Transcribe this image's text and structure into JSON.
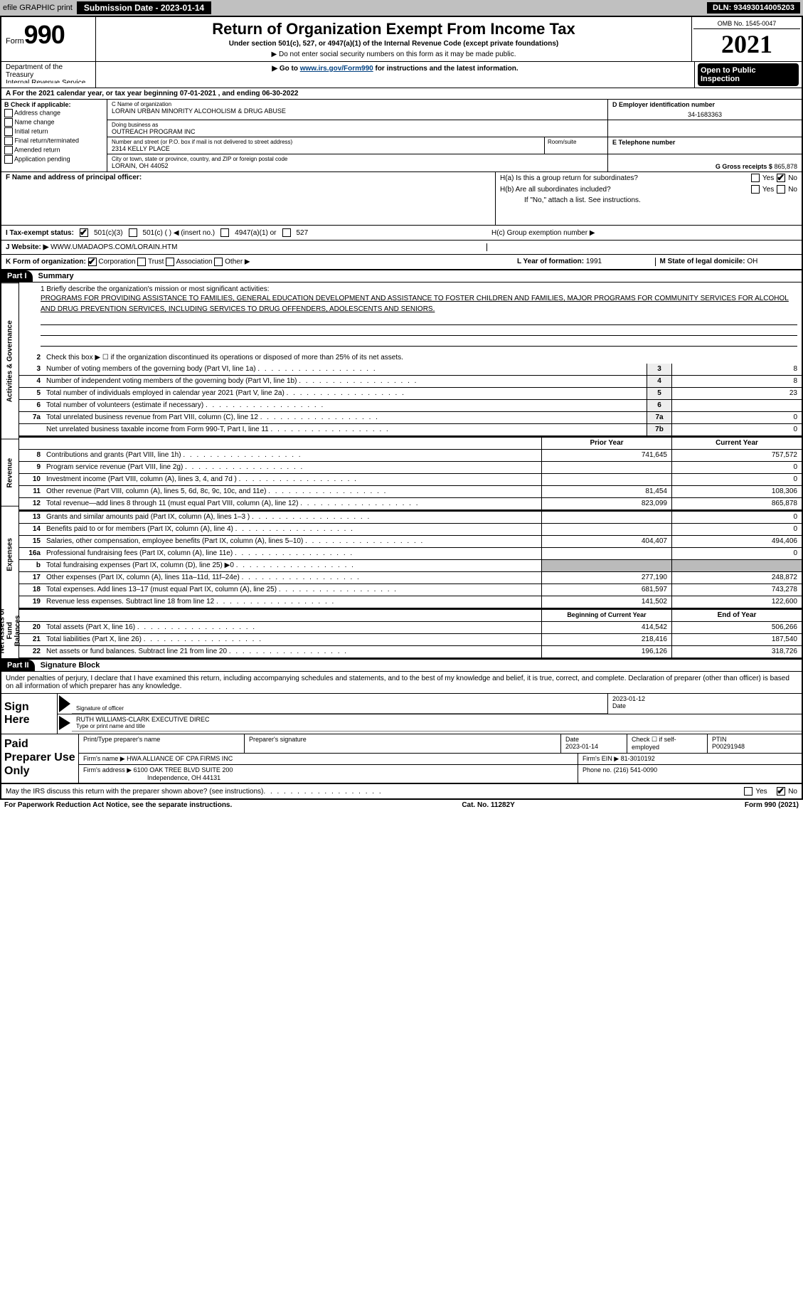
{
  "topbar": {
    "efile": "efile GRAPHIC print",
    "submission": "Submission Date - 2023-01-14",
    "dln": "DLN: 93493014005203"
  },
  "header": {
    "form_prefix": "Form",
    "form_number": "990",
    "title": "Return of Organization Exempt From Income Tax",
    "subtitle": "Under section 501(c), 527, or 4947(a)(1) of the Internal Revenue Code (except private foundations)",
    "note1": "▶ Do not enter social security numbers on this form as it may be made public.",
    "note2": "▶ Go to www.irs.gov/Form990 for instructions and the latest information.",
    "link": "www.irs.gov/Form990",
    "omb": "OMB No. 1545-0047",
    "year": "2021",
    "open": "Open to Public Inspection",
    "dept": "Department of the Treasury",
    "irs": "Internal Revenue Service"
  },
  "line_a": "A   For the 2021 calendar year, or tax year beginning 07-01-2021    , and ending 06-30-2022",
  "block_b": {
    "label": "B Check if applicable:",
    "items": [
      "Address change",
      "Name change",
      "Initial return",
      "Final return/terminated",
      "Amended return",
      "Application pending"
    ]
  },
  "block_c": {
    "name_lbl": "C Name of organization",
    "name": "LORAIN URBAN MINORITY ALCOHOLISM & DRUG ABUSE",
    "dba_lbl": "Doing business as",
    "dba": "OUTREACH PROGRAM INC",
    "street_lbl": "Number and street (or P.O. box if mail is not delivered to street address)",
    "street": "2314 KELLY PLACE",
    "room_lbl": "Room/suite",
    "city_lbl": "City or town, state or province, country, and ZIP or foreign postal code",
    "city": "LORAIN, OH  44052"
  },
  "block_d": {
    "ein_lbl": "D Employer identification number",
    "ein": "34-1683363",
    "tel_lbl": "E Telephone number",
    "gross_lbl": "G Gross receipts $",
    "gross": "865,878"
  },
  "block_f": {
    "lbl": "F Name and address of principal officer:"
  },
  "block_h": {
    "ha": "H(a)  Is this a group return for subordinates?",
    "hb": "H(b)  Are all subordinates included?",
    "hb_note": "If \"No,\" attach a list. See instructions.",
    "hc": "H(c)  Group exemption number ▶"
  },
  "row_i": {
    "lbl": "I   Tax-exempt status:",
    "opts": [
      "501(c)(3)",
      "501(c) (  ) ◀ (insert no.)",
      "4947(a)(1) or",
      "527"
    ]
  },
  "row_j": {
    "lbl": "J   Website: ▶",
    "val": "WWW.UMADAOPS.COM/LORAIN.HTM"
  },
  "row_k": {
    "lbl": "K Form of organization:",
    "opts": [
      "Corporation",
      "Trust",
      "Association",
      "Other ▶"
    ],
    "l_lbl": "L Year of formation:",
    "l_val": "1991",
    "m_lbl": "M State of legal domicile:",
    "m_val": "OH"
  },
  "parts": {
    "p1": "Part I",
    "p1_title": "Summary",
    "p2": "Part II",
    "p2_title": "Signature Block"
  },
  "summary": {
    "briefly_lbl": "1   Briefly describe the organization's mission or most significant activities:",
    "briefly": "PROGRAMS FOR PROVIDING ASSISTANCE TO FAMILIES, GENERAL EDUCATION DEVELOPMENT AND ASSISTANCE TO FOSTER CHILDREN AND FAMILIES, MAJOR PROGRAMS FOR COMMUNITY SERVICES FOR ALCOHOL AND DRUG PREVENTION SERVICES, INCLUDING SERVICES TO DRUG OFFENDERS, ADOLESCENTS AND SENIORS.",
    "tabs": {
      "gov": "Activities & Governance",
      "rev": "Revenue",
      "exp": "Expenses",
      "net": "Net Assets or Fund Balances"
    },
    "line2": "Check this box ▶ ☐  if the organization discontinued its operations or disposed of more than 25% of its net assets.",
    "lines_single": [
      {
        "n": "3",
        "t": "Number of voting members of the governing body (Part VI, line 1a)",
        "box": "3",
        "v": "8"
      },
      {
        "n": "4",
        "t": "Number of independent voting members of the governing body (Part VI, line 1b)",
        "box": "4",
        "v": "8"
      },
      {
        "n": "5",
        "t": "Total number of individuals employed in calendar year 2021 (Part V, line 2a)",
        "box": "5",
        "v": "23"
      },
      {
        "n": "6",
        "t": "Total number of volunteers (estimate if necessary)",
        "box": "6",
        "v": ""
      },
      {
        "n": "7a",
        "t": "Total unrelated business revenue from Part VIII, column (C), line 12",
        "box": "7a",
        "v": "0"
      },
      {
        "n": "",
        "t": "Net unrelated business taxable income from Form 990-T, Part I, line 11",
        "box": "7b",
        "v": "0"
      }
    ],
    "hdr_prior": "Prior Year",
    "hdr_current": "Current Year",
    "lines_rev": [
      {
        "n": "8",
        "t": "Contributions and grants (Part VIII, line 1h)",
        "p": "741,645",
        "c": "757,572"
      },
      {
        "n": "9",
        "t": "Program service revenue (Part VIII, line 2g)",
        "p": "",
        "c": "0"
      },
      {
        "n": "10",
        "t": "Investment income (Part VIII, column (A), lines 3, 4, and 7d )",
        "p": "",
        "c": "0"
      },
      {
        "n": "11",
        "t": "Other revenue (Part VIII, column (A), lines 5, 6d, 8c, 9c, 10c, and 11e)",
        "p": "81,454",
        "c": "108,306"
      },
      {
        "n": "12",
        "t": "Total revenue—add lines 8 through 11 (must equal Part VIII, column (A), line 12)",
        "p": "823,099",
        "c": "865,878"
      }
    ],
    "lines_exp": [
      {
        "n": "13",
        "t": "Grants and similar amounts paid (Part IX, column (A), lines 1–3 )",
        "p": "",
        "c": "0"
      },
      {
        "n": "14",
        "t": "Benefits paid to or for members (Part IX, column (A), line 4)",
        "p": "",
        "c": "0"
      },
      {
        "n": "15",
        "t": "Salaries, other compensation, employee benefits (Part IX, column (A), lines 5–10)",
        "p": "404,407",
        "c": "494,406"
      },
      {
        "n": "16a",
        "t": "Professional fundraising fees (Part IX, column (A), line 11e)",
        "p": "",
        "c": "0"
      },
      {
        "n": "b",
        "t": "Total fundraising expenses (Part IX, column (D), line 25) ▶0",
        "p": "SHADE",
        "c": "SHADE"
      },
      {
        "n": "17",
        "t": "Other expenses (Part IX, column (A), lines 11a–11d, 11f–24e)",
        "p": "277,190",
        "c": "248,872"
      },
      {
        "n": "18",
        "t": "Total expenses. Add lines 13–17 (must equal Part IX, column (A), line 25)",
        "p": "681,597",
        "c": "743,278"
      },
      {
        "n": "19",
        "t": "Revenue less expenses. Subtract line 18 from line 12",
        "p": "141,502",
        "c": "122,600"
      }
    ],
    "hdr_begin": "Beginning of Current Year",
    "hdr_end": "End of Year",
    "lines_net": [
      {
        "n": "20",
        "t": "Total assets (Part X, line 16)",
        "p": "414,542",
        "c": "506,266"
      },
      {
        "n": "21",
        "t": "Total liabilities (Part X, line 26)",
        "p": "218,416",
        "c": "187,540"
      },
      {
        "n": "22",
        "t": "Net assets or fund balances. Subtract line 21 from line 20",
        "p": "196,126",
        "c": "318,726"
      }
    ]
  },
  "sig": {
    "declare": "Under penalties of perjury, I declare that I have examined this return, including accompanying schedules and statements, and to the best of my knowledge and belief, it is true, correct, and complete. Declaration of preparer (other than officer) is based on all information of which preparer has any knowledge.",
    "sign_here": "Sign Here",
    "sig_officer": "Signature of officer",
    "date": "Date",
    "date_val": "2023-01-12",
    "name": "RUTH WILLIAMS-CLARK  EXECUTIVE DIREC",
    "name_lbl": "Type or print name and title"
  },
  "prep": {
    "label": "Paid Preparer Use Only",
    "h1": "Print/Type preparer's name",
    "h2": "Preparer's signature",
    "h3": "Date",
    "h3v": "2023-01-14",
    "h4": "Check ☐ if self-employed",
    "h5": "PTIN",
    "h5v": "P00291948",
    "firm_lbl": "Firm's name    ▶",
    "firm": "HWA ALLIANCE OF CPA FIRMS INC",
    "ein_lbl": "Firm's EIN ▶",
    "ein": "81-3010192",
    "addr_lbl": "Firm's address ▶",
    "addr1": "6100 OAK TREE BLVD SUITE 200",
    "addr2": "Independence, OH  44131",
    "phone_lbl": "Phone no.",
    "phone": "(216) 541-0090"
  },
  "footer": {
    "discuss": "May the IRS discuss this return with the preparer shown above? (see instructions)",
    "paperwork": "For Paperwork Reduction Act Notice, see the separate instructions.",
    "cat": "Cat. No. 11282Y",
    "form": "Form 990 (2021)"
  },
  "yn": {
    "yes": "Yes",
    "no": "No"
  }
}
